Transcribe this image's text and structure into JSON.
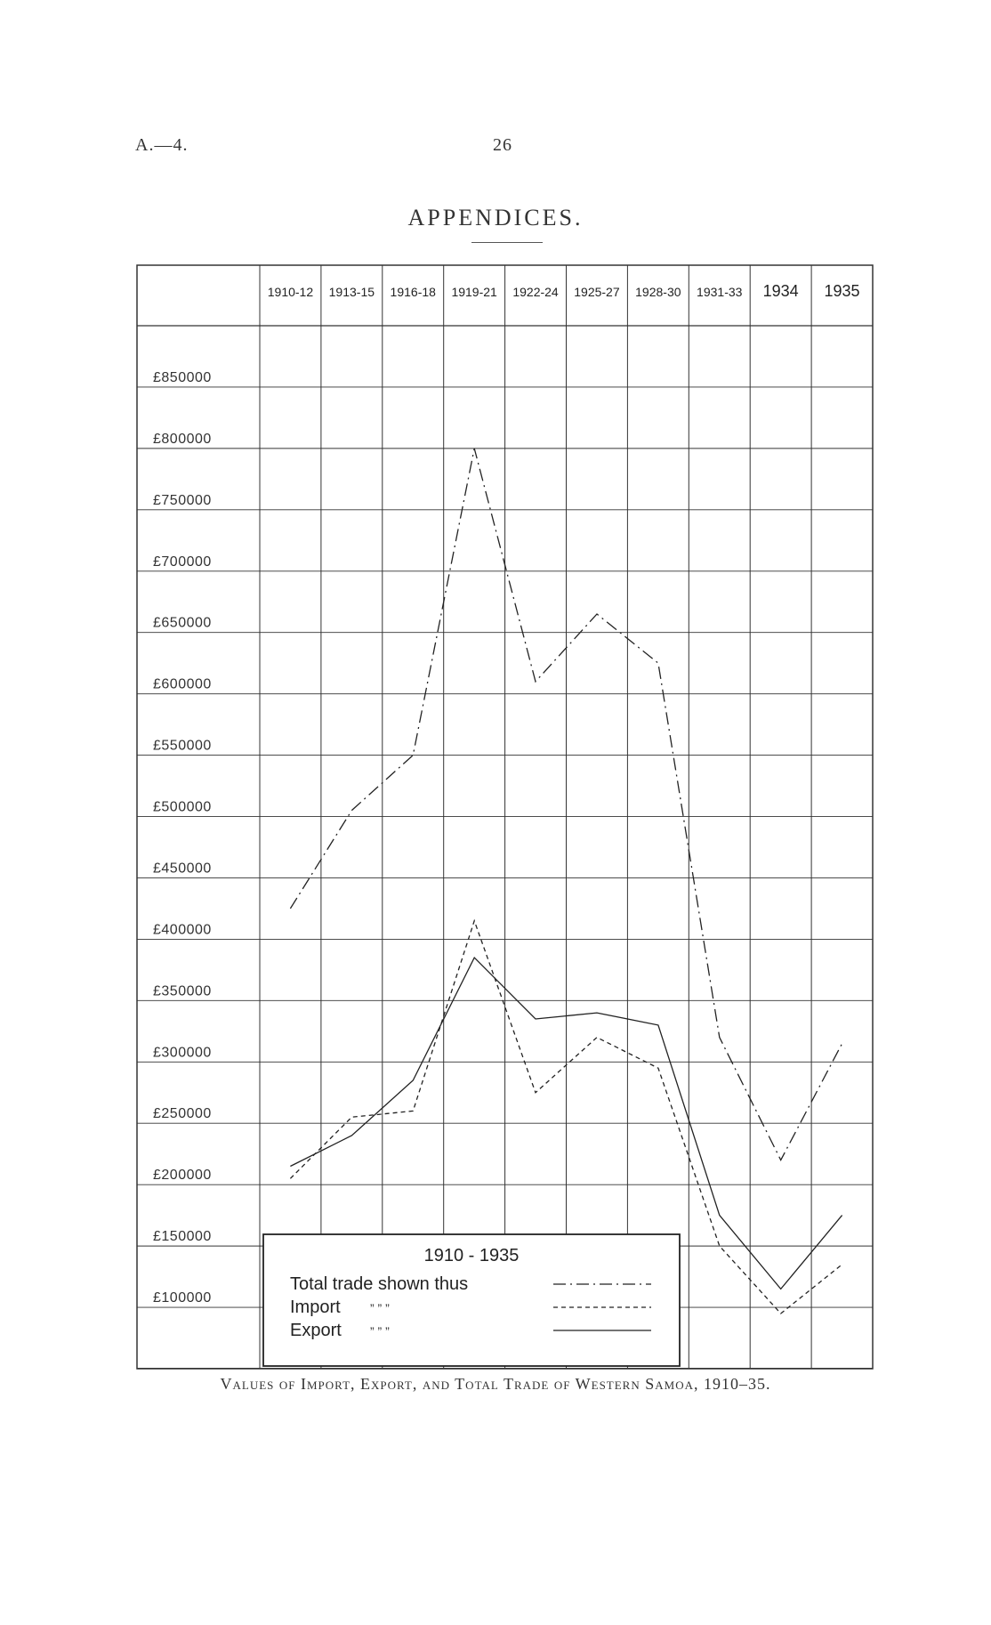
{
  "page_ref": "A.—4.",
  "page_number": "26",
  "section_title": "APPENDICES.",
  "caption": "Values of Import, Export, and Total Trade of Western Samoa, 1910–35.",
  "chart_data": {
    "type": "line",
    "title": "",
    "xlabel": "",
    "ylabel": "",
    "categories": [
      "1910-12",
      "1913-15",
      "1916-18",
      "1919-21",
      "1922-24",
      "1925-27",
      "1928-30",
      "1931-33",
      "1934",
      "1935"
    ],
    "y_tick_labels": [
      "£850000",
      "£800000",
      "£750000",
      "£700000",
      "£650000",
      "£600000",
      "£550000",
      "£500000",
      "£450000",
      "£400000",
      "£350000",
      "£300000",
      "£250000",
      "£200000",
      "£150000",
      "£100000"
    ],
    "ylim": [
      50000,
      900000
    ],
    "grid": true,
    "legend": {
      "title": "1910 - 1935",
      "entries": [
        {
          "label": "Total trade shown thus",
          "style": "dash-dot"
        },
        {
          "label": "Import",
          "ditto": "”    ”    ”",
          "style": "dashed"
        },
        {
          "label": "Export",
          "ditto": "”    ”    ”",
          "style": "solid"
        }
      ]
    },
    "series": [
      {
        "name": "Total trade",
        "style": "dash-dot",
        "points": [
          [
            0.5,
            425000
          ],
          [
            1.5,
            505000
          ],
          [
            2.5,
            550000
          ],
          [
            3.5,
            800000
          ],
          [
            4.5,
            610000
          ],
          [
            5.5,
            665000
          ],
          [
            6.5,
            625000
          ],
          [
            7.5,
            320000
          ],
          [
            8.5,
            220000
          ],
          [
            9.5,
            315000
          ]
        ]
      },
      {
        "name": "Import",
        "style": "dashed",
        "points": [
          [
            0.5,
            205000
          ],
          [
            1.5,
            255000
          ],
          [
            2.5,
            260000
          ],
          [
            3.5,
            415000
          ],
          [
            4.5,
            275000
          ],
          [
            5.5,
            320000
          ],
          [
            6.5,
            295000
          ],
          [
            7.5,
            150000
          ],
          [
            8.5,
            95000
          ],
          [
            9.5,
            135000
          ]
        ]
      },
      {
        "name": "Export",
        "style": "solid",
        "points": [
          [
            0.5,
            215000
          ],
          [
            1.5,
            240000
          ],
          [
            2.5,
            285000
          ],
          [
            3.5,
            385000
          ],
          [
            4.5,
            335000
          ],
          [
            5.5,
            340000
          ],
          [
            6.5,
            330000
          ],
          [
            7.5,
            175000
          ],
          [
            8.5,
            115000
          ],
          [
            9.5,
            175000
          ]
        ]
      }
    ]
  }
}
